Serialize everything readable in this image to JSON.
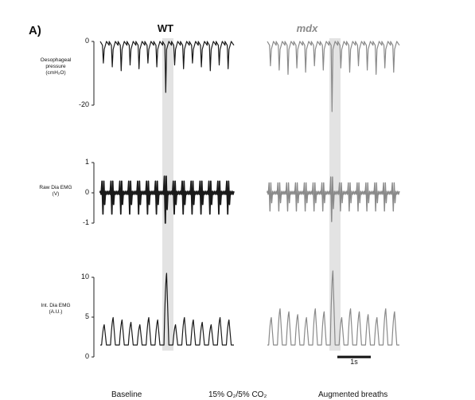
{
  "panel_label": "A)",
  "groups": {
    "wt": "WT",
    "mdx": "mdx"
  },
  "colors": {
    "wt": "#1a1a1a",
    "mdx": "#8a8a8a",
    "highlight": "#e3e3e3"
  },
  "scale_bar": {
    "label": "1s",
    "duration_s": 1
  },
  "bottom_labels": [
    "Baseline",
    "15% O₂/5% CO₂",
    "Augmented breaths"
  ],
  "chart_data": [
    {
      "type": "line",
      "ylabel": [
        "Oesophageal",
        "pressure",
        "(cmH₂O)"
      ],
      "ylim": [
        -20,
        0
      ],
      "yticks": [
        "0",
        "-20"
      ],
      "series": [
        {
          "values": {
            "baseline": 0,
            "breath_trough": -8,
            "augmented_trough": -16
          }
        },
        {
          "values": {
            "baseline": 0,
            "breath_trough": -9,
            "augmented_trough": -22
          }
        }
      ]
    },
    {
      "type": "line",
      "ylabel": [
        "Raw Dia EMG",
        "(V)"
      ],
      "ylim": [
        -1,
        1
      ],
      "yticks": [
        "1",
        "0",
        "-1"
      ],
      "series": [
        {
          "values": {
            "burst_amplitude": 0.7,
            "augmented_amplitude": 1.0
          }
        },
        {
          "values": {
            "burst_amplitude": 0.6,
            "augmented_amplitude": 0.95
          }
        }
      ]
    },
    {
      "type": "line",
      "ylabel": [
        "Int. Dia EMG",
        "(A.U.)"
      ],
      "ylim": [
        0,
        10
      ],
      "yticks": [
        "10",
        "5",
        "0"
      ],
      "series": [
        {
          "values": {
            "trough": 1.5,
            "peak": 4.5,
            "augmented_peak": 10.5
          }
        },
        {
          "values": {
            "trough": 1.5,
            "peak": 5.5,
            "augmented_peak": 10.8
          }
        }
      ]
    }
  ],
  "breaths": {
    "count": 15,
    "augmented_index": 7
  }
}
